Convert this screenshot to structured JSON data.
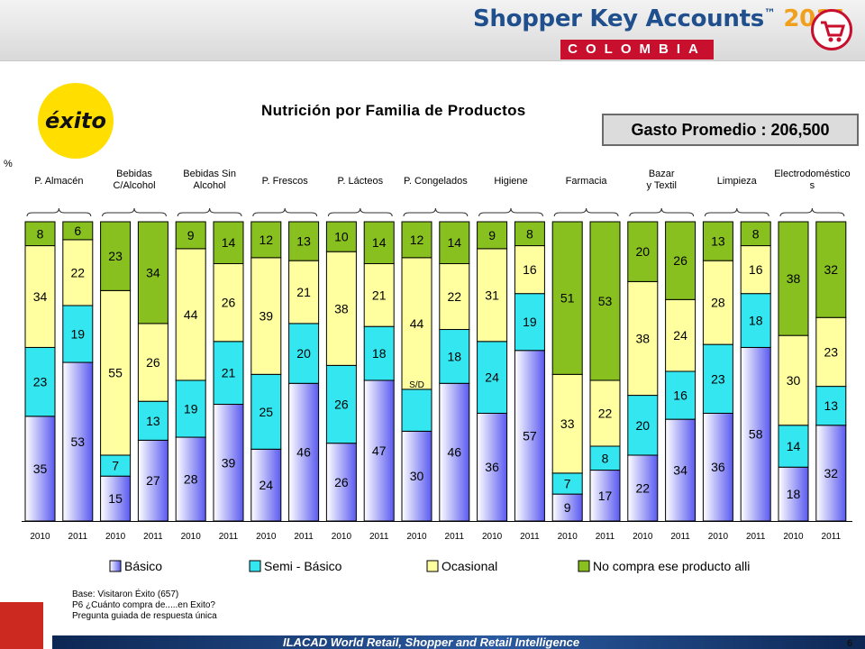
{
  "header": {
    "title": "Shopper Key Accounts",
    "trademark": "™",
    "year": "2011",
    "country": "COLOMBIA"
  },
  "brand_logo": "éxito",
  "gasto": "Gasto Promedio : 206,500",
  "percent_label": "%",
  "chart_data": {
    "type": "bar",
    "stacked": true,
    "normalized": true,
    "title": "Nutrición por Familia de Productos",
    "groups": [
      "P. Almacén",
      "Bebidas C/Alcohol",
      "Bebidas Sin Alcohol",
      "P. Frescos",
      "P. Lácteos",
      "P. Congelados",
      "Higiene",
      "Farmacia",
      "Bazar y Textil",
      "Limpieza",
      "Electrodomésticos"
    ],
    "categories": [
      "2010",
      "2011",
      "2010",
      "2011",
      "2010",
      "2011",
      "2010",
      "2011",
      "2010",
      "2011",
      "2010",
      "2011",
      "2010",
      "2011",
      "2010",
      "2011",
      "2010",
      "2011",
      "2010",
      "2011",
      "2010",
      "2011"
    ],
    "series": [
      {
        "name": "Básico",
        "color": "#5a5af0",
        "values": [
          35,
          53,
          15,
          27,
          28,
          39,
          24,
          46,
          26,
          47,
          30,
          46,
          36,
          57,
          9,
          17,
          22,
          34,
          36,
          58,
          18,
          32
        ]
      },
      {
        "name": "Semi - Básico",
        "color": "#33e6f0",
        "values": [
          23,
          19,
          7,
          13,
          19,
          21,
          25,
          20,
          26,
          18,
          14,
          18,
          24,
          19,
          7,
          8,
          20,
          16,
          23,
          18,
          14,
          13
        ]
      },
      {
        "name": "Ocasional",
        "color": "#ffffa0",
        "values": [
          34,
          22,
          55,
          26,
          44,
          26,
          39,
          21,
          38,
          21,
          44,
          22,
          31,
          16,
          33,
          22,
          38,
          24,
          28,
          16,
          30,
          23
        ]
      },
      {
        "name": "No compra ese producto alli",
        "color": "#88c020",
        "values": [
          8,
          6,
          23,
          34,
          9,
          14,
          12,
          13,
          10,
          14,
          12,
          14,
          9,
          8,
          51,
          53,
          20,
          26,
          13,
          8,
          38,
          32
        ]
      }
    ],
    "annotations": [
      {
        "category_index": 10,
        "text": "S/D"
      }
    ],
    "legend_position": "bottom",
    "ylim": [
      0,
      100
    ]
  },
  "footnotes": [
    "Base: Visitaron Éxito (657)",
    "P6 ¿Cuánto compra de.....en Exito?",
    "Pregunta guiada de respuesta única"
  ],
  "footer": "ILACAD World Retail, Shopper and Retail Intelligence",
  "page_number": "6"
}
